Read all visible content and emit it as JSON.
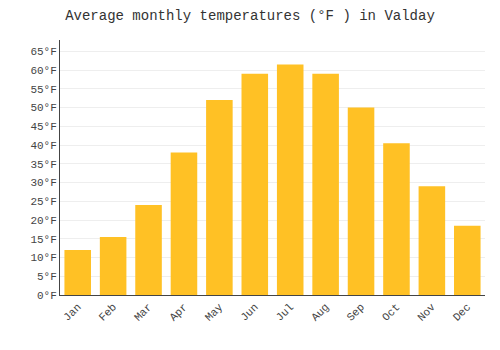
{
  "chart_data": {
    "type": "bar",
    "title": "Average monthly temperatures (°F ) in Valday",
    "categories": [
      "Jan",
      "Feb",
      "Mar",
      "Apr",
      "May",
      "Jun",
      "Jul",
      "Aug",
      "Sep",
      "Oct",
      "Nov",
      "Dec"
    ],
    "values": [
      12,
      15.5,
      24,
      38,
      52,
      59,
      61.5,
      59,
      50,
      40.5,
      29,
      18.5
    ],
    "color": "#FFC125",
    "ylim": [
      0,
      68
    ],
    "yticks": [
      {
        "value": 0,
        "label": "0°F"
      },
      {
        "value": 5,
        "label": "5°F"
      },
      {
        "value": 10,
        "label": "10°F"
      },
      {
        "value": 15,
        "label": "15°F"
      },
      {
        "value": 20,
        "label": "20°F"
      },
      {
        "value": 25,
        "label": "25°F"
      },
      {
        "value": 30,
        "label": "30°F"
      },
      {
        "value": 35,
        "label": "35°F"
      },
      {
        "value": 40,
        "label": "40°F"
      },
      {
        "value": 45,
        "label": "45°F"
      },
      {
        "value": 50,
        "label": "50°F"
      },
      {
        "value": 55,
        "label": "55°F"
      },
      {
        "value": 60,
        "label": "60°F"
      },
      {
        "value": 65,
        "label": "65°F"
      }
    ],
    "grid": true
  }
}
